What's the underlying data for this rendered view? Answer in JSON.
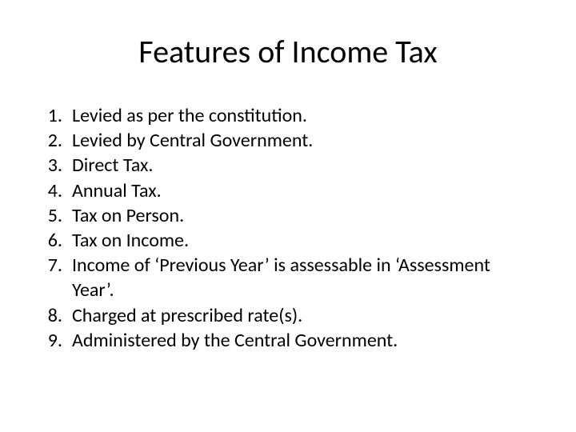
{
  "slide": {
    "title": "Features of Income Tax",
    "title_fontsize": 40,
    "title_color": "#000000",
    "background_color": "#ffffff",
    "items": [
      {
        "num": "1.",
        "text": "Levied as per the constitution."
      },
      {
        "num": "2.",
        "text": "Levied by Central Government."
      },
      {
        "num": "3.",
        "text": "Direct Tax."
      },
      {
        "num": "4.",
        "text": "Annual Tax."
      },
      {
        "num": "5.",
        "text": "Tax on Person."
      },
      {
        "num": "6.",
        "text": "Tax on Income."
      },
      {
        "num": "7.",
        "text": "Income of ‘Previous Year’ is assessable in ‘Assessment Year’."
      },
      {
        "num": "8.",
        "text": "Charged at prescribed rate(s)."
      },
      {
        "num": "9.",
        "text": "Administered by the Central Government."
      }
    ],
    "item_fontsize": 24,
    "item_color": "#000000",
    "font_family": "Calibri"
  }
}
